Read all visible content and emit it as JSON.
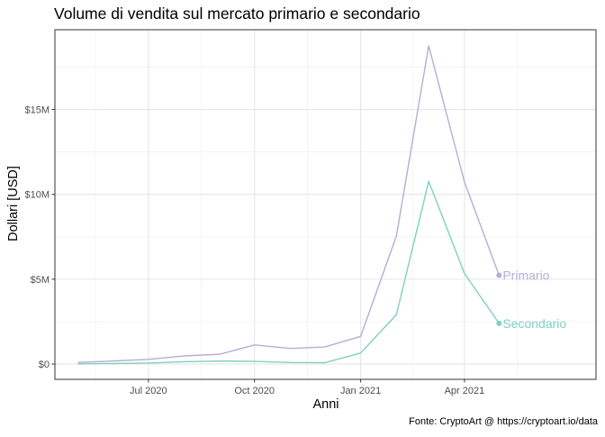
{
  "chart_data": {
    "type": "line",
    "title": "Volume di vendita sul mercato primario e secondario",
    "xlabel": "Anni",
    "ylabel": "Dollari [USD]",
    "caption": "Fonte: CryptoArt @ https://cryptoart.io/data",
    "x_ticks": [
      {
        "date": "2020-07-01",
        "label": "Jul 2020"
      },
      {
        "date": "2020-10-01",
        "label": "Oct 2020"
      },
      {
        "date": "2021-01-01",
        "label": "Jan 2021"
      },
      {
        "date": "2021-04-01",
        "label": "Apr 2021"
      }
    ],
    "y_ticks": [
      {
        "value": 0,
        "label": "$0"
      },
      {
        "value": 5000000,
        "label": "$5M"
      },
      {
        "value": 10000000,
        "label": "$10M"
      },
      {
        "value": 15000000,
        "label": "$15M"
      }
    ],
    "xlim": [
      "2020-04-11",
      "2021-07-24"
    ],
    "ylim": [
      -900000,
      19700000
    ],
    "grid": true,
    "x": [
      "2020-05-01",
      "2020-06-01",
      "2020-07-01",
      "2020-08-01",
      "2020-09-01",
      "2020-10-01",
      "2020-11-01",
      "2020-12-01",
      "2021-01-01",
      "2021-02-01",
      "2021-03-01",
      "2021-04-01",
      "2021-05-01"
    ],
    "series": [
      {
        "name": "Primario",
        "color": "#b4aed6",
        "values": [
          100000,
          180000,
          280000,
          480000,
          580000,
          1130000,
          920000,
          1010000,
          1630000,
          7550000,
          18750000,
          10720000,
          5230000
        ]
      },
      {
        "name": "Secondario",
        "color": "#7fd1bd",
        "values": [
          20000,
          30000,
          60000,
          140000,
          180000,
          160000,
          90000,
          80000,
          650000,
          2910000,
          10770000,
          5330000,
          2400000
        ]
      }
    ]
  }
}
